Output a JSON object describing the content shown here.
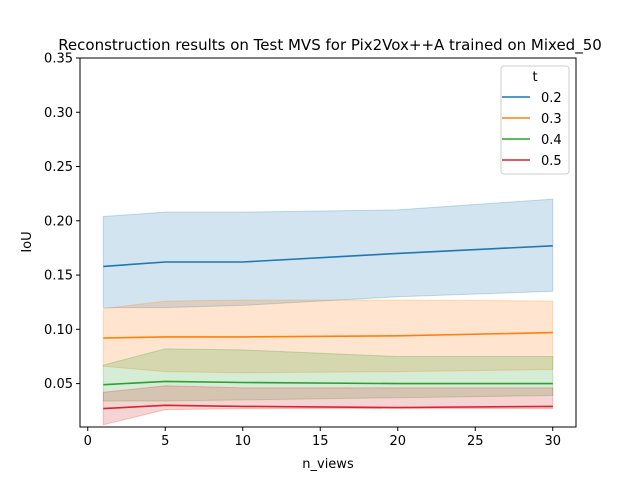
{
  "chart_data": {
    "type": "line",
    "title": "Reconstruction results on Test MVS for Pix2Vox++A trained on Mixed_50",
    "xlabel": "n_views",
    "ylabel": "IoU",
    "xlim": [
      -0.5,
      31.5
    ],
    "ylim": [
      0.01,
      0.35
    ],
    "xticks": [
      0,
      5,
      10,
      15,
      20,
      25,
      30
    ],
    "xtick_labels": [
      "0",
      "5",
      "10",
      "15",
      "20",
      "25",
      "30"
    ],
    "yticks": [
      0.05,
      0.1,
      0.15,
      0.2,
      0.25,
      0.3,
      0.35
    ],
    "ytick_labels": [
      "0.05",
      "0.10",
      "0.15",
      "0.20",
      "0.25",
      "0.30",
      "0.35"
    ],
    "grid": false,
    "legend": {
      "title": "t",
      "placement": "top-right"
    },
    "x": [
      1,
      5,
      10,
      20,
      30
    ],
    "series": [
      {
        "name": "0.2",
        "color": "#1f77b4",
        "values": [
          0.158,
          0.162,
          0.162,
          0.17,
          0.177
        ],
        "band_low": [
          0.12,
          0.12,
          0.122,
          0.13,
          0.135
        ],
        "band_high": [
          0.204,
          0.208,
          0.208,
          0.21,
          0.22
        ]
      },
      {
        "name": "0.3",
        "color": "#ff7f0e",
        "values": [
          0.092,
          0.093,
          0.093,
          0.094,
          0.097
        ],
        "band_low": [
          0.066,
          0.061,
          0.06,
          0.061,
          0.063
        ],
        "band_high": [
          0.119,
          0.126,
          0.127,
          0.127,
          0.126
        ]
      },
      {
        "name": "0.4",
        "color": "#2ca02c",
        "values": [
          0.049,
          0.052,
          0.051,
          0.05,
          0.05
        ],
        "band_low": [
          0.034,
          0.034,
          0.035,
          0.037,
          0.039
        ],
        "band_high": [
          0.067,
          0.082,
          0.081,
          0.075,
          0.075
        ]
      },
      {
        "name": "0.5",
        "color": "#d62728",
        "values": [
          0.027,
          0.03,
          0.029,
          0.028,
          0.029
        ],
        "band_low": [
          0.012,
          0.026,
          0.027,
          0.027,
          0.027
        ],
        "band_high": [
          0.042,
          0.048,
          0.046,
          0.046,
          0.046
        ]
      }
    ]
  }
}
